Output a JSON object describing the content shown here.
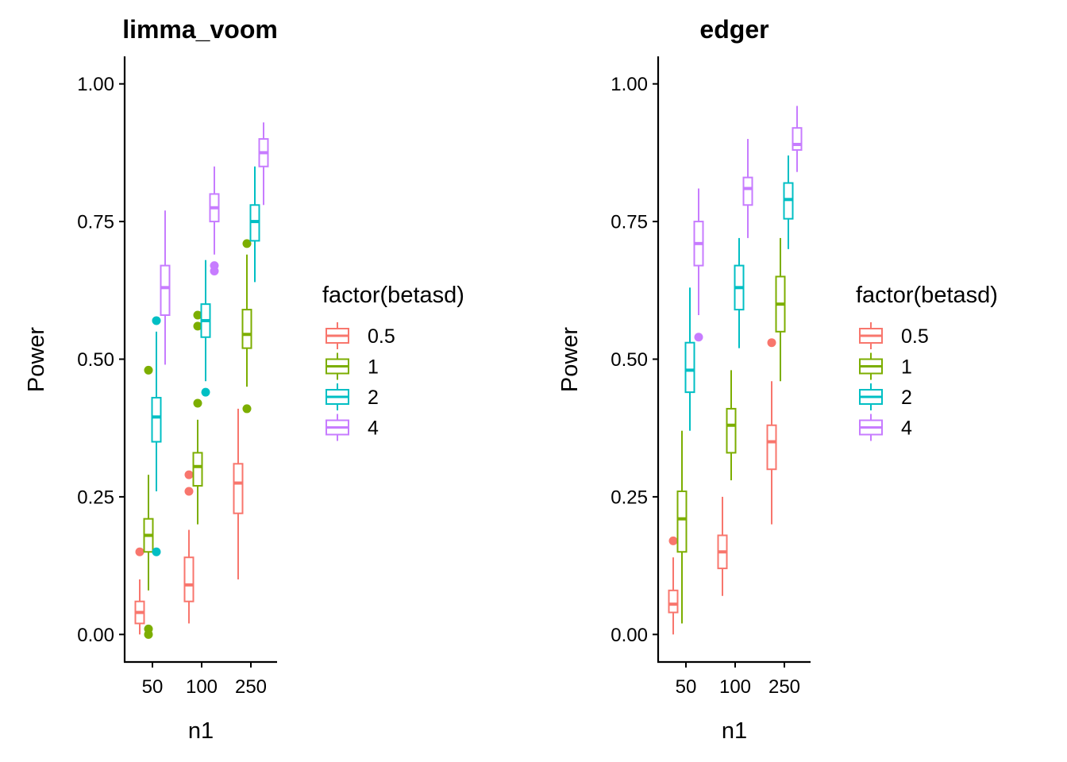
{
  "legend": {
    "title": "factor(betasd)",
    "levels": [
      "0.5",
      "1",
      "2",
      "4"
    ],
    "colors": [
      "#F8766D",
      "#7CAE00",
      "#00BFC4",
      "#C77CFF"
    ]
  },
  "chart_data": [
    {
      "type": "box",
      "title": "limma_voom",
      "xlabel": "n1",
      "ylabel": "Power",
      "categories": [
        "50",
        "100",
        "250"
      ],
      "ylim": [
        -0.05,
        1.05
      ],
      "yticks": [
        "0.00",
        "0.25",
        "0.50",
        "0.75",
        "1.00"
      ],
      "grid": false,
      "legend_position": "right",
      "series": [
        {
          "name": "0.5",
          "boxes": [
            {
              "category": "50",
              "min": 0.0,
              "q1": 0.02,
              "median": 0.04,
              "q3": 0.06,
              "max": 0.1,
              "outliers": [
                0.15
              ]
            },
            {
              "category": "100",
              "min": 0.02,
              "q1": 0.06,
              "median": 0.09,
              "q3": 0.14,
              "max": 0.19,
              "outliers": [
                0.26,
                0.29
              ]
            },
            {
              "category": "250",
              "min": 0.1,
              "q1": 0.22,
              "median": 0.275,
              "q3": 0.31,
              "max": 0.41,
              "outliers": []
            }
          ]
        },
        {
          "name": "1",
          "boxes": [
            {
              "category": "50",
              "min": 0.08,
              "q1": 0.15,
              "median": 0.18,
              "q3": 0.21,
              "max": 0.29,
              "outliers": [
                0.0,
                0.01,
                0.48
              ]
            },
            {
              "category": "100",
              "min": 0.2,
              "q1": 0.27,
              "median": 0.305,
              "q3": 0.33,
              "max": 0.39,
              "outliers": [
                0.42,
                0.56,
                0.58
              ]
            },
            {
              "category": "250",
              "min": 0.45,
              "q1": 0.52,
              "median": 0.545,
              "q3": 0.59,
              "max": 0.69,
              "outliers": [
                0.41,
                0.71
              ]
            }
          ]
        },
        {
          "name": "2",
          "boxes": [
            {
              "category": "50",
              "min": 0.26,
              "q1": 0.35,
              "median": 0.395,
              "q3": 0.43,
              "max": 0.55,
              "outliers": [
                0.15,
                0.57
              ]
            },
            {
              "category": "100",
              "min": 0.46,
              "q1": 0.54,
              "median": 0.57,
              "q3": 0.6,
              "max": 0.68,
              "outliers": [
                0.44
              ]
            },
            {
              "category": "250",
              "min": 0.64,
              "q1": 0.715,
              "median": 0.75,
              "q3": 0.78,
              "max": 0.85,
              "outliers": []
            }
          ]
        },
        {
          "name": "4",
          "boxes": [
            {
              "category": "50",
              "min": 0.49,
              "q1": 0.58,
              "median": 0.63,
              "q3": 0.67,
              "max": 0.77,
              "outliers": []
            },
            {
              "category": "100",
              "min": 0.69,
              "q1": 0.75,
              "median": 0.775,
              "q3": 0.8,
              "max": 0.85,
              "outliers": [
                0.66,
                0.67
              ]
            },
            {
              "category": "250",
              "min": 0.78,
              "q1": 0.85,
              "median": 0.875,
              "q3": 0.9,
              "max": 0.93,
              "outliers": []
            }
          ]
        }
      ]
    },
    {
      "type": "box",
      "title": "edger",
      "xlabel": "n1",
      "ylabel": "Power",
      "categories": [
        "50",
        "100",
        "250"
      ],
      "ylim": [
        -0.05,
        1.05
      ],
      "yticks": [
        "0.00",
        "0.25",
        "0.50",
        "0.75",
        "1.00"
      ],
      "grid": false,
      "legend_position": "right",
      "series": [
        {
          "name": "0.5",
          "boxes": [
            {
              "category": "50",
              "min": 0.0,
              "q1": 0.04,
              "median": 0.055,
              "q3": 0.08,
              "max": 0.14,
              "outliers": [
                0.17
              ]
            },
            {
              "category": "100",
              "min": 0.07,
              "q1": 0.12,
              "median": 0.15,
              "q3": 0.18,
              "max": 0.25,
              "outliers": []
            },
            {
              "category": "250",
              "min": 0.2,
              "q1": 0.3,
              "median": 0.35,
              "q3": 0.38,
              "max": 0.46,
              "outliers": [
                0.53
              ]
            }
          ]
        },
        {
          "name": "1",
          "boxes": [
            {
              "category": "50",
              "min": 0.02,
              "q1": 0.15,
              "median": 0.21,
              "q3": 0.26,
              "max": 0.37,
              "outliers": []
            },
            {
              "category": "100",
              "min": 0.28,
              "q1": 0.33,
              "median": 0.38,
              "q3": 0.41,
              "max": 0.48,
              "outliers": []
            },
            {
              "category": "250",
              "min": 0.46,
              "q1": 0.55,
              "median": 0.6,
              "q3": 0.65,
              "max": 0.72,
              "outliers": []
            }
          ]
        },
        {
          "name": "2",
          "boxes": [
            {
              "category": "50",
              "min": 0.37,
              "q1": 0.44,
              "median": 0.48,
              "q3": 0.53,
              "max": 0.63,
              "outliers": []
            },
            {
              "category": "100",
              "min": 0.52,
              "q1": 0.59,
              "median": 0.63,
              "q3": 0.67,
              "max": 0.72,
              "outliers": []
            },
            {
              "category": "250",
              "min": 0.7,
              "q1": 0.755,
              "median": 0.79,
              "q3": 0.82,
              "max": 0.87,
              "outliers": []
            }
          ]
        },
        {
          "name": "4",
          "boxes": [
            {
              "category": "50",
              "min": 0.58,
              "q1": 0.67,
              "median": 0.71,
              "q3": 0.75,
              "max": 0.81,
              "outliers": [
                0.54
              ]
            },
            {
              "category": "100",
              "min": 0.72,
              "q1": 0.78,
              "median": 0.81,
              "q3": 0.83,
              "max": 0.9,
              "outliers": []
            },
            {
              "category": "250",
              "min": 0.84,
              "q1": 0.88,
              "median": 0.89,
              "q3": 0.92,
              "max": 0.96,
              "outliers": []
            }
          ]
        }
      ]
    }
  ]
}
